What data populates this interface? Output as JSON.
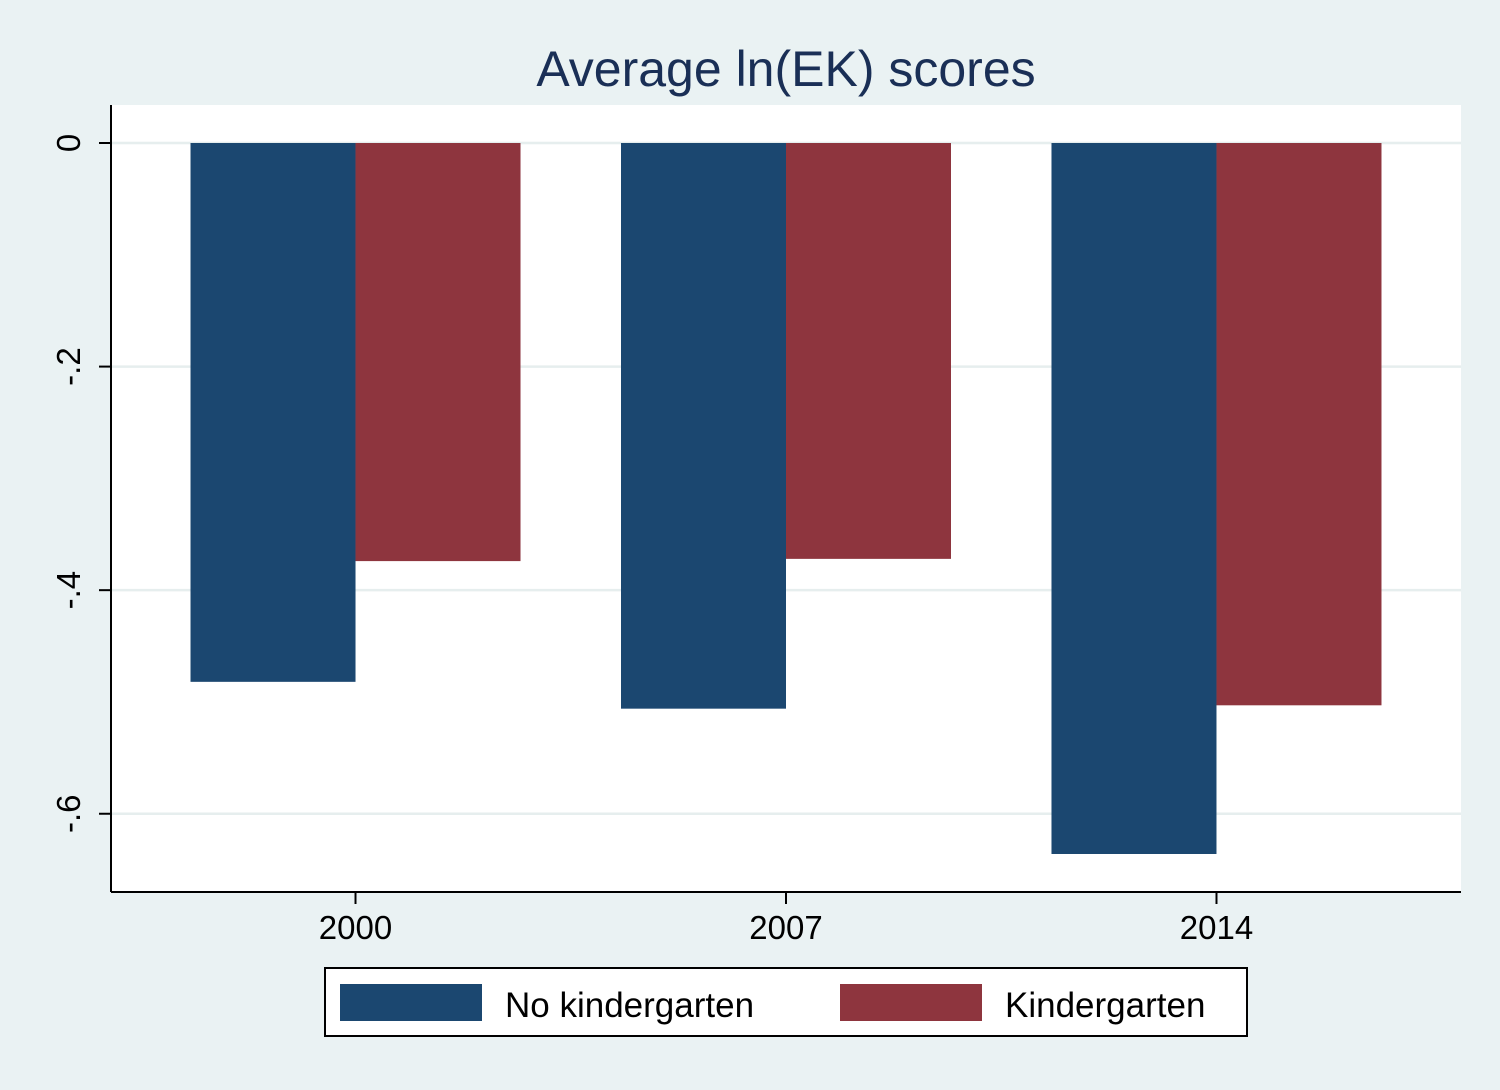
{
  "chart_data": {
    "type": "bar",
    "title": "Average ln(EK) scores",
    "categories": [
      "2000",
      "2007",
      "2014"
    ],
    "series": [
      {
        "name": "No kindergarten",
        "color": "#1b4770",
        "values": [
          -0.482,
          -0.506,
          -0.636
        ]
      },
      {
        "name": "Kindergarten",
        "color": "#8e353e",
        "values": [
          -0.374,
          -0.372,
          -0.503
        ]
      }
    ],
    "ylim": [
      -0.67,
      0.034
    ],
    "yticks": [
      0,
      -0.2,
      -0.4,
      -0.6
    ],
    "ytick_labels": [
      "0",
      "-.2",
      "-.4",
      "-.6"
    ],
    "grid": true,
    "legend": "bottom"
  }
}
